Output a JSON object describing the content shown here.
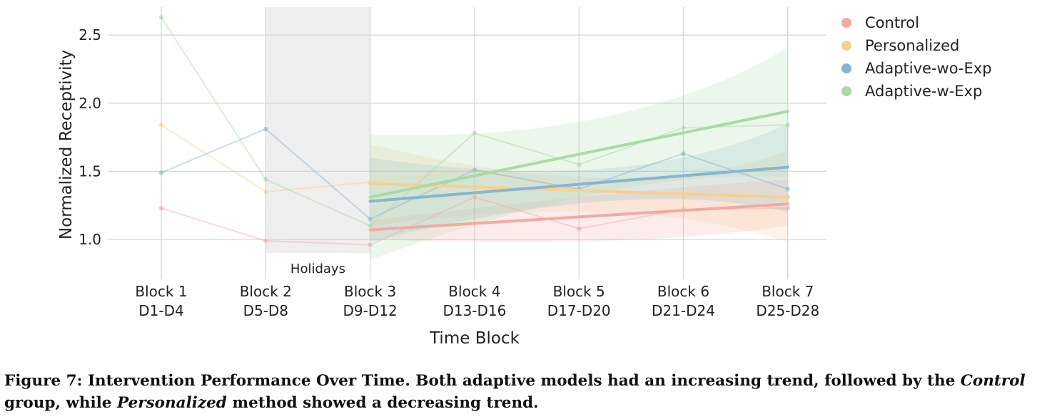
{
  "chart_data": {
    "type": "line",
    "xlabel": "Time Block",
    "ylabel": "Normalized Receptivity",
    "ylim": [
      0.87,
      2.7
    ],
    "yticks": [
      "1.0",
      "1.5",
      "2.0",
      "2.5"
    ],
    "ytick_values": [
      1.0,
      1.5,
      2.0,
      2.5
    ],
    "categories": [
      {
        "line1": "Block 1",
        "line2": "D1-D4"
      },
      {
        "line1": "Block 2",
        "line2": "D5-D8"
      },
      {
        "line1": "Block 3",
        "line2": "D9-D12"
      },
      {
        "line1": "Block 4",
        "line2": "D13-D16"
      },
      {
        "line1": "Block 5",
        "line2": "D17-D20"
      },
      {
        "line1": "Block 6",
        "line2": "D21-D24"
      },
      {
        "line1": "Block 7",
        "line2": "D25-D28"
      }
    ],
    "grid": true,
    "legend_position": "top-right",
    "annotation": {
      "label": "Holidays",
      "from_block": 2,
      "to_block": 3
    },
    "series": [
      {
        "name": "Control",
        "color": "#f2aaa3",
        "values": [
          1.23,
          0.99,
          0.96,
          1.31,
          1.08,
          1.22,
          1.23
        ],
        "trend": {
          "from_block": 3,
          "start": 1.07,
          "end": 1.26
        },
        "ci_lower": [
          1.0,
          0.99,
          1.1
        ],
        "ci_upper": [
          1.14,
          1.33,
          1.44
        ]
      },
      {
        "name": "Personalized",
        "color": "#f8cf93",
        "values": [
          1.84,
          1.35,
          1.42,
          1.51,
          1.36,
          1.32,
          1.31
        ],
        "trend": {
          "from_block": 3,
          "start": 1.41,
          "end": 1.31
        },
        "ci_lower": [
          1.1,
          1.2,
          0.98
        ],
        "ci_upper": [
          1.7,
          1.45,
          1.65
        ]
      },
      {
        "name": "Adaptive-wo-Exp",
        "color": "#86b6d2",
        "values": [
          1.49,
          1.81,
          1.15,
          1.51,
          1.37,
          1.63,
          1.37
        ],
        "trend": {
          "from_block": 3,
          "start": 1.28,
          "end": 1.53
        },
        "ci_lower": [
          0.98,
          1.28,
          1.2
        ],
        "ci_upper": [
          1.6,
          1.52,
          1.85
        ]
      },
      {
        "name": "Adaptive-w-Exp",
        "color": "#a9dba3",
        "values": [
          2.63,
          1.44,
          1.1,
          1.78,
          1.55,
          1.82,
          1.84
        ],
        "trend": {
          "from_block": 3,
          "start": 1.31,
          "end": 1.94
        },
        "ci_lower": [
          0.85,
          1.35,
          1.45
        ],
        "ci_upper": [
          1.77,
          1.9,
          2.41
        ]
      }
    ]
  },
  "caption": {
    "segments": [
      {
        "text": "Figure 7: Intervention Performance Over Time. Both adaptive models had an increasing trend, followed by the ",
        "italic": false
      },
      {
        "text": "Control",
        "italic": true
      },
      {
        "text": " group, while ",
        "italic": false
      },
      {
        "text": "Personalized",
        "italic": true
      },
      {
        "text": " method showed a decreasing trend.",
        "italic": false
      }
    ]
  }
}
